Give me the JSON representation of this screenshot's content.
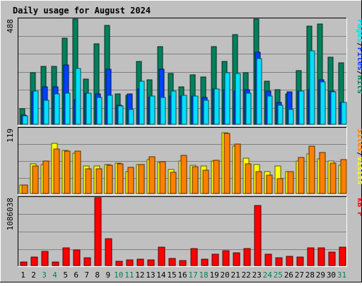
{
  "chart_data": {
    "type": "bar",
    "title": "Daily usage for August 2024",
    "x": [
      "1",
      "2",
      "3",
      "4",
      "5",
      "6",
      "7",
      "8",
      "9",
      "10",
      "11",
      "12",
      "13",
      "14",
      "15",
      "16",
      "17",
      "18",
      "19",
      "20",
      "21",
      "22",
      "23",
      "24",
      "25",
      "26",
      "27",
      "28",
      "29",
      "30",
      "31"
    ],
    "weekend_days": [
      "3",
      "4",
      "10",
      "11",
      "17",
      "18",
      "24",
      "25",
      "31"
    ],
    "colors": {
      "title": "#0000cc",
      "hits": "#00805c",
      "files": "#0040ff",
      "pages": "#00e0ff",
      "visits": "#ffff00",
      "sites": "#ff8000",
      "kbytes": "#ff0000",
      "weekend_label": "#00805c",
      "weekday_label": "#000000",
      "plot_bg": "#c0c0c0",
      "grid": "#808080"
    },
    "panels": [
      {
        "id": "hits-files-pages",
        "max_label": "488",
        "ylim": [
          0,
          488
        ],
        "legend": [
          {
            "label": "Hits",
            "color": "#00805c"
          },
          {
            "label": "/",
            "color": "#000000"
          },
          {
            "label": "Files",
            "color": "#0040ff"
          },
          {
            "label": "/",
            "color": "#000000"
          },
          {
            "label": "Pages",
            "color": "#00e0ff"
          }
        ],
        "series": [
          {
            "name": "Hits",
            "color": "#00805c",
            "values": [
              72,
              240,
              270,
              270,
              400,
              488,
              210,
              375,
              460,
              140,
              135,
              290,
              205,
              360,
              235,
              175,
              230,
              220,
              360,
              290,
              415,
              240,
              488,
              200,
              160,
              140,
              250,
              455,
              465,
              310,
              285
            ]
          },
          {
            "name": "Files",
            "color": "#0040ff",
            "values": [
              42,
              150,
              175,
              175,
              275,
              115,
              145,
              140,
              255,
              90,
              140,
              165,
              125,
              255,
              130,
              130,
              130,
              125,
              165,
              160,
              155,
              160,
              335,
              155,
              100,
              150,
              155,
              160,
              205,
              155,
              100
            ]
          },
          {
            "name": "Pages",
            "color": "#00e0ff",
            "values": [
              40,
              155,
              110,
              140,
              145,
              260,
              145,
              125,
              135,
              85,
              70,
              200,
              130,
              125,
              155,
              135,
              130,
              110,
              165,
              240,
              235,
              145,
              305,
              130,
              90,
              70,
              155,
              340,
              195,
              150,
              100
            ]
          }
        ]
      },
      {
        "id": "visits-sites",
        "max_label": "119",
        "ylim": [
          0,
          119
        ],
        "legend": [
          {
            "label": "Visits",
            "color": "#ffff00"
          },
          {
            "label": "/",
            "color": "#000000"
          },
          {
            "label": "Sites",
            "color": "#ff8000"
          }
        ],
        "series": [
          {
            "name": "Visits",
            "color": "#ffff00",
            "values": [
              15,
              54,
              53,
              92,
              79,
              74,
              50,
              50,
              53,
              56,
              40,
              53,
              62,
              57,
              44,
              59,
              52,
              50,
              60,
              111,
              87,
              65,
              53,
              40,
              50,
              40,
              60,
              72,
              64,
              60,
              52
            ]
          },
          {
            "name": "Sites",
            "color": "#ff8000",
            "values": [
              15,
              50,
              59,
              81,
              78,
              78,
              45,
              45,
              52,
              54,
              48,
              53,
              67,
              58,
              39,
              70,
              49,
              43,
              61,
              110,
              91,
              54,
              40,
              33,
              27,
              40,
              66,
              87,
              75,
              56,
              62
            ]
          }
        ]
      },
      {
        "id": "kbytes",
        "max_label": "1086038",
        "ylim": [
          0,
          1086038
        ],
        "legend": [
          {
            "label": "kB F",
            "color": "#ff0000"
          }
        ],
        "series": [
          {
            "name": "kB F",
            "color": "#ff0000",
            "values": [
              60000,
              140000,
              230000,
              55000,
              280000,
              250000,
              120000,
              1086038,
              430000,
              70000,
              90000,
              100000,
              90000,
              290000,
              110000,
              80000,
              270000,
              100000,
              180000,
              240000,
              200000,
              270000,
              960000,
              180000,
              130000,
              150000,
              140000,
              280000,
              280000,
              210000,
              295000
            ]
          }
        ]
      }
    ]
  }
}
